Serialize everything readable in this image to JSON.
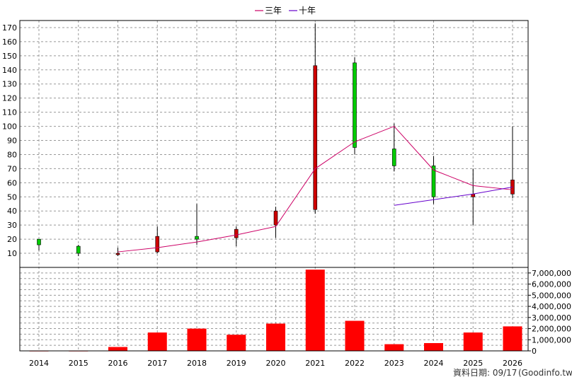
{
  "chart_data": {
    "type": "candlestick",
    "legend": [
      {
        "name": "三年",
        "color": "#cc0066"
      },
      {
        "name": "十年",
        "color": "#6600cc"
      }
    ],
    "categories": [
      "2014",
      "2015",
      "2016",
      "2017",
      "2018",
      "2019",
      "2020",
      "2021",
      "2022",
      "2023",
      "2024",
      "2025",
      "2026"
    ],
    "price_ylim": [
      0,
      175
    ],
    "price_ticks": [
      10,
      20,
      30,
      40,
      50,
      60,
      70,
      80,
      90,
      100,
      110,
      120,
      130,
      140,
      150,
      160,
      170
    ],
    "candles": [
      {
        "year": "2014",
        "open": 16,
        "close": 20,
        "high": 20,
        "low": 12
      },
      {
        "year": "2015",
        "open": 10,
        "close": 15,
        "high": 16,
        "low": 8
      },
      {
        "year": "2016",
        "open": 10,
        "close": 9,
        "high": 14,
        "low": 8
      },
      {
        "year": "2017",
        "open": 22,
        "close": 11,
        "high": 29,
        "low": 10
      },
      {
        "year": "2018",
        "open": 20,
        "close": 22,
        "high": 45,
        "low": 16
      },
      {
        "year": "2019",
        "open": 27,
        "close": 21,
        "high": 29,
        "low": 15
      },
      {
        "year": "2020",
        "open": 40,
        "close": 30,
        "high": 43,
        "low": 21
      },
      {
        "year": "2021",
        "open": 143,
        "close": 41,
        "high": 173,
        "low": 38
      },
      {
        "year": "2022",
        "open": 85,
        "close": 145,
        "high": 149,
        "low": 80
      },
      {
        "year": "2023",
        "open": 72,
        "close": 84,
        "high": 102,
        "low": 68
      },
      {
        "year": "2024",
        "open": 50,
        "close": 72,
        "high": 79,
        "low": 45
      },
      {
        "year": "2025",
        "open": 52,
        "close": 50,
        "high": 70,
        "low": 30
      },
      {
        "year": "2026",
        "open": 62,
        "close": 52,
        "high": 100,
        "low": 49
      }
    ],
    "ma3": [
      {
        "year": "2016",
        "value": 11
      },
      {
        "year": "2017",
        "value": 14
      },
      {
        "year": "2018",
        "value": 18
      },
      {
        "year": "2019",
        "value": 23
      },
      {
        "year": "2020",
        "value": 29
      },
      {
        "year": "2021",
        "value": 70
      },
      {
        "year": "2022",
        "value": 89
      },
      {
        "year": "2023",
        "value": 100
      },
      {
        "year": "2024",
        "value": 69
      },
      {
        "year": "2025",
        "value": 58
      },
      {
        "year": "2026",
        "value": 55
      }
    ],
    "ma10": [
      {
        "year": "2023",
        "value": 44
      },
      {
        "year": "2024",
        "value": 48
      },
      {
        "year": "2025",
        "value": 52
      },
      {
        "year": "2026",
        "value": 57
      }
    ],
    "volume_ylim": [
      0,
      7500000
    ],
    "volume_ticks": [
      0,
      1000000,
      2000000,
      3000000,
      4000000,
      5000000,
      6000000,
      7000000
    ],
    "volume_tick_labels": [
      "0",
      "1,000,000",
      "2,000,000",
      "3,000,000",
      "4,000,000",
      "5,000,000",
      "6,000,000",
      "7,000,000"
    ],
    "volumes": [
      20000,
      20000,
      350000,
      1650000,
      2000000,
      1450000,
      2450000,
      7300000,
      2700000,
      600000,
      700000,
      1650000,
      2200000
    ],
    "colors": {
      "up": "#00cc00",
      "down": "#cc0000",
      "volume": "#ff0000",
      "grid": "#999999",
      "ma3": "#cc0066",
      "ma10": "#6600cc"
    }
  },
  "footer": {
    "date_label": "資料日期: 09/17",
    "source": "(Goodinfo.tw)"
  }
}
